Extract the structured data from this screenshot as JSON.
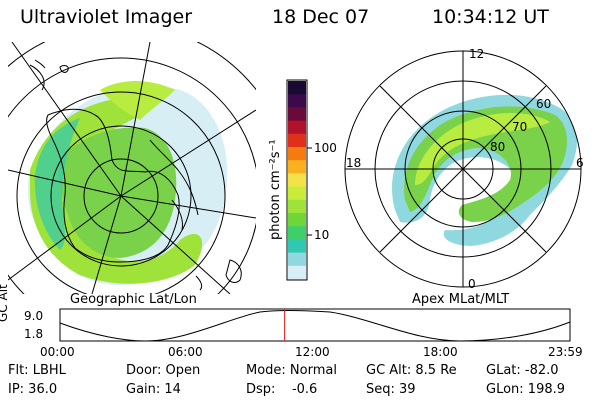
{
  "header": {
    "instrument": "Ultraviolet Imager",
    "date": "18 Dec 07",
    "time": "10:34:12 UT"
  },
  "left_panel": {
    "caption": "Geographic Lat/Lon"
  },
  "right_panel": {
    "caption": "Apex MLat/MLT",
    "mlt_labels": {
      "top": "12",
      "left": "18",
      "right": "6",
      "bottom": "0"
    },
    "mlat_labels": [
      "60",
      "70",
      "80"
    ]
  },
  "colorbar": {
    "unit_label": "photon cm⁻²s⁻¹",
    "ticks": [
      "100",
      "10"
    ],
    "colors": [
      "#1a0a33",
      "#3a0a4a",
      "#6a0a3a",
      "#b0122a",
      "#e0301a",
      "#f57a10",
      "#fbb020",
      "#f2e34a",
      "#c9ec3a",
      "#9fe33a",
      "#6fd63a",
      "#3ccf6a",
      "#30c8b0",
      "#8fd8e0",
      "#d6eef4"
    ]
  },
  "altitude_plot": {
    "y_label": "GC Alt",
    "y_ticks": [
      "9.0",
      "1.8"
    ],
    "x_ticks": [
      "00:00",
      "06:00",
      "12:00",
      "18:00",
      "23:59"
    ],
    "current_time_hours": 10.57
  },
  "info": {
    "row1": [
      "Flt: LBHL",
      "Door: Open",
      "Mode: Normal",
      "GC Alt: 8.5 Re",
      "GLat: -82.0"
    ],
    "row2": [
      "IP: 36.0",
      "Gain: 14",
      "Dsp:    -0.6",
      "Seq: 39",
      "GLon: 198.9"
    ]
  },
  "colors": {
    "marker": "#e0201a",
    "aurora_green": "#6fd63a",
    "aurora_cyan": "#8fd8e0"
  }
}
